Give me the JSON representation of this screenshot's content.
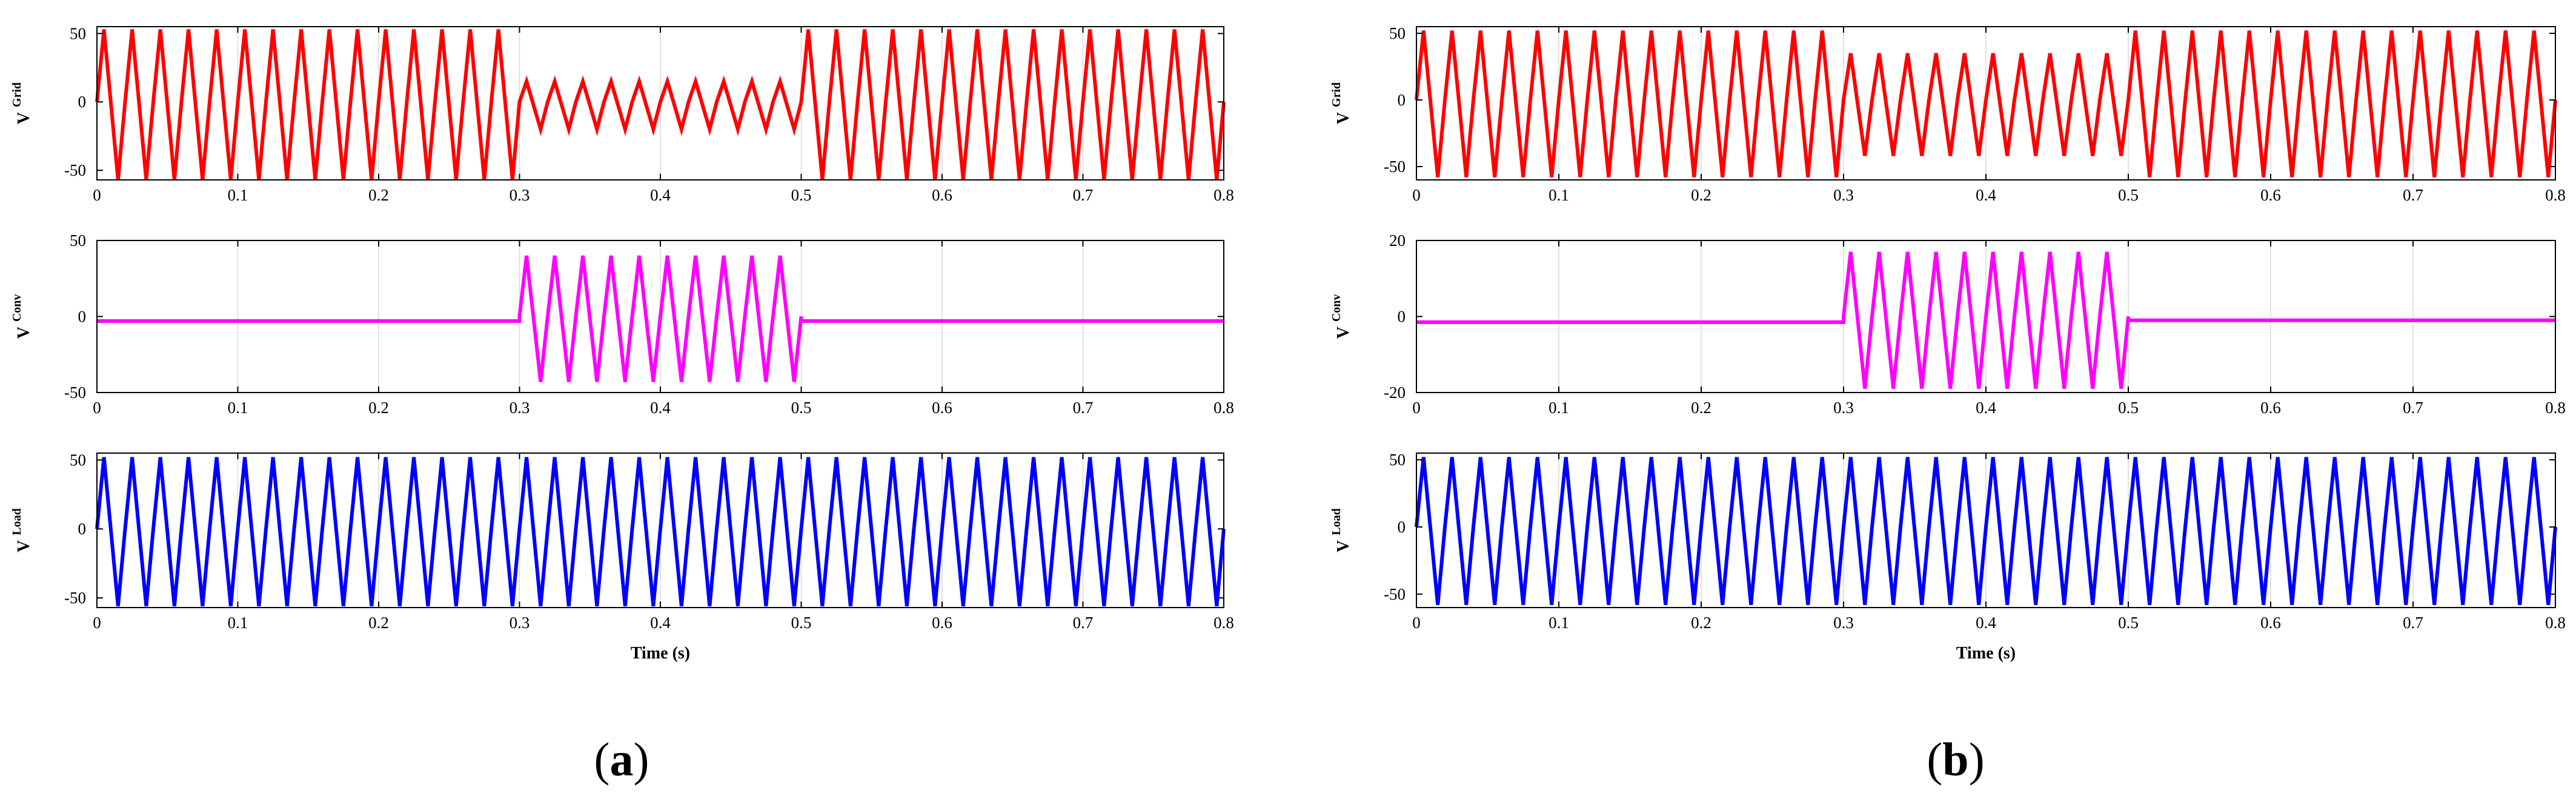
{
  "figure": {
    "subfigure_labels": [
      {
        "open": "(",
        "letter": "a",
        "close": ")"
      },
      {
        "open": "(",
        "letter": "b",
        "close": ")"
      }
    ]
  },
  "colors": {
    "grid": "#ff0000",
    "conv": "#ff00ff",
    "load": "#0000ff"
  },
  "chart_data": [
    {
      "type": "line",
      "panel": "a",
      "row": 0,
      "ylabel": {
        "main": "V",
        "sub": "Grid"
      },
      "xlabel": "",
      "xlim": [
        0,
        0.8
      ],
      "ylim": [
        -57,
        55
      ],
      "xticks": [
        "0",
        "0.1",
        "0.2",
        "0.3",
        "0.4",
        "0.5",
        "0.6",
        "0.7",
        "0.8"
      ],
      "yticks": [
        50,
        0,
        -50
      ],
      "waveform": {
        "period": 0.02,
        "segments": [
          [
            0,
            0.3,
            53,
            -57
          ],
          [
            0.3,
            0.5,
            15,
            -20
          ],
          [
            0.5,
            0.8,
            53,
            -57
          ]
        ]
      },
      "color": "#ff0000"
    },
    {
      "type": "line",
      "panel": "a",
      "row": 1,
      "ylabel": {
        "main": "V",
        "sub": "Conv"
      },
      "xlabel": "",
      "xlim": [
        0,
        0.8
      ],
      "ylim": [
        -50,
        50
      ],
      "xticks": [
        "0",
        "0.1",
        "0.2",
        "0.3",
        "0.4",
        "0.5",
        "0.6",
        "0.7",
        "0.8"
      ],
      "yticks": [
        50,
        0,
        -50
      ],
      "waveform": {
        "period": 0.02,
        "baseline": -3,
        "segments": [
          [
            0,
            0.3,
            -3,
            -3
          ],
          [
            0.3,
            0.5,
            40,
            -43
          ],
          [
            0.5,
            0.8,
            -3,
            -3
          ]
        ]
      },
      "color": "#ff00ff"
    },
    {
      "type": "line",
      "panel": "a",
      "row": 2,
      "ylabel": {
        "main": "V",
        "sub": "Load"
      },
      "xlabel": "Time (s)",
      "xlim": [
        0,
        0.8
      ],
      "ylim": [
        -57,
        55
      ],
      "xticks": [
        "0",
        "0.1",
        "0.2",
        "0.3",
        "0.4",
        "0.5",
        "0.6",
        "0.7",
        "0.8"
      ],
      "yticks": [
        50,
        0,
        -50
      ],
      "waveform": {
        "period": 0.02,
        "segments": [
          [
            0,
            0.8,
            52,
            -56
          ]
        ]
      },
      "color": "#0000ff"
    },
    {
      "type": "line",
      "panel": "b",
      "row": 0,
      "ylabel": {
        "main": "V",
        "sub": "Grid"
      },
      "xlabel": "",
      "xlim": [
        0,
        0.8
      ],
      "ylim": [
        -60,
        55
      ],
      "xticks": [
        "0",
        "0.1",
        "0.2",
        "0.3",
        "0.4",
        "0.5",
        "0.6",
        "0.7",
        "0.8"
      ],
      "yticks": [
        50,
        0,
        -50
      ],
      "waveform": {
        "period": 0.02,
        "segments": [
          [
            0,
            0.3,
            52,
            -58
          ],
          [
            0.3,
            0.5,
            35,
            -42
          ],
          [
            0.5,
            0.8,
            52,
            -58
          ]
        ]
      },
      "color": "#ff0000"
    },
    {
      "type": "line",
      "panel": "b",
      "row": 1,
      "ylabel": {
        "main": "V",
        "sub": "Conv"
      },
      "xlabel": "",
      "xlim": [
        0,
        0.8
      ],
      "ylim": [
        -20,
        20
      ],
      "xticks": [
        "0",
        "0.1",
        "0.2",
        "0.3",
        "0.4",
        "0.5",
        "0.6",
        "0.7",
        "0.8"
      ],
      "yticks": [
        20,
        0,
        -20
      ],
      "waveform": {
        "period": 0.02,
        "segments": [
          [
            0,
            0.3,
            -1.5,
            -1.5
          ],
          [
            0.3,
            0.5,
            17,
            -19
          ],
          [
            0.5,
            0.8,
            -1,
            -1
          ]
        ]
      },
      "color": "#ff00ff"
    },
    {
      "type": "line",
      "panel": "b",
      "row": 2,
      "ylabel": {
        "main": "V",
        "sub": "Load"
      },
      "xlabel": "Time (s)",
      "xlim": [
        0,
        0.8
      ],
      "ylim": [
        -60,
        55
      ],
      "xticks": [
        "0",
        "0.1",
        "0.2",
        "0.3",
        "0.4",
        "0.5",
        "0.6",
        "0.7",
        "0.8"
      ],
      "yticks": [
        50,
        0,
        -50
      ],
      "waveform": {
        "period": 0.02,
        "segments": [
          [
            0,
            0.8,
            52,
            -58
          ]
        ]
      },
      "color": "#0000ff"
    }
  ]
}
